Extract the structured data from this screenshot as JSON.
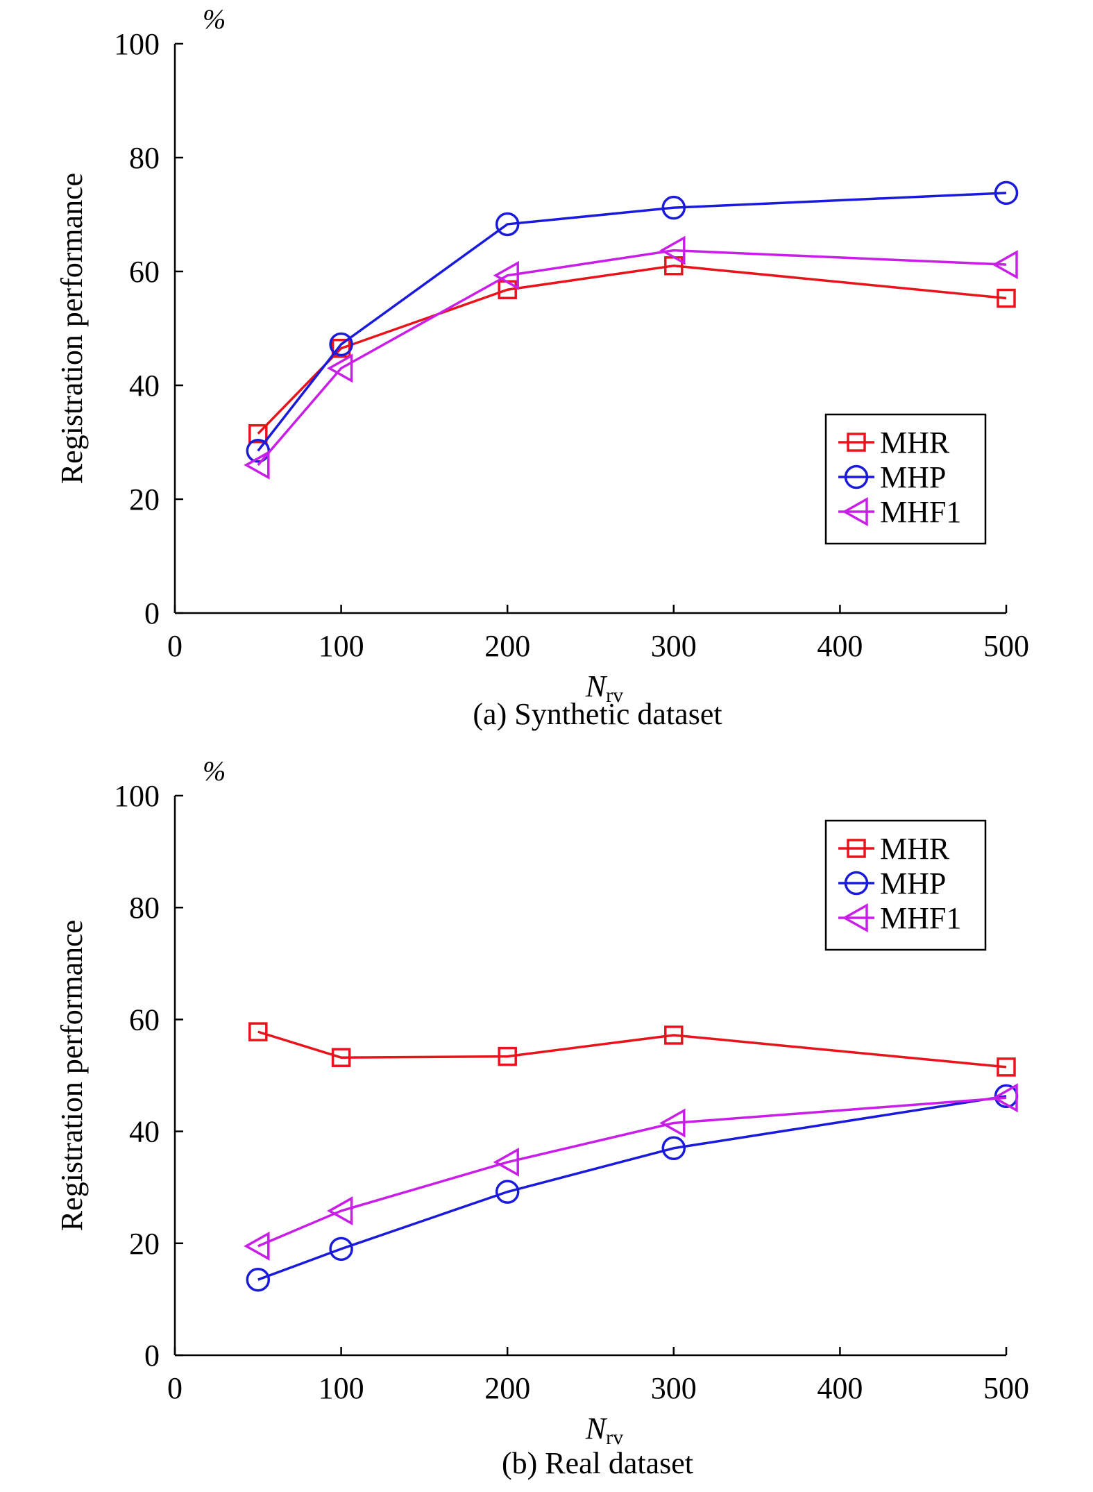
{
  "colors": {
    "MHR": "#e8141b",
    "MHP": "#1a1adb",
    "MHF1": "#c81ee8",
    "axis": "#000000"
  },
  "chart_data": [
    {
      "type": "line",
      "caption": "(a) Synthetic dataset",
      "unit": "%",
      "xlabel": "N",
      "xlabel_sub": "rv",
      "ylabel": "Registration performance",
      "xlim": [
        0,
        500
      ],
      "ylim": [
        0,
        100
      ],
      "x_ticks": [
        "0",
        "100",
        "200",
        "300",
        "400",
        "500"
      ],
      "y_ticks": [
        "0",
        "20",
        "40",
        "60",
        "80",
        "100"
      ],
      "grid": false,
      "legend_position": "lower-right",
      "series": [
        {
          "name": "MHR",
          "marker": "square",
          "x": [
            50,
            100,
            200,
            300,
            500
          ],
          "y": [
            31.5,
            46.5,
            56.8,
            61.0,
            55.3
          ]
        },
        {
          "name": "MHP",
          "marker": "circle",
          "x": [
            50,
            100,
            200,
            300,
            500
          ],
          "y": [
            28.5,
            47.2,
            68.3,
            71.2,
            73.8
          ]
        },
        {
          "name": "MHF1",
          "marker": "triangle-left",
          "x": [
            50,
            100,
            200,
            300,
            500
          ],
          "y": [
            26.0,
            43.0,
            59.3,
            63.7,
            61.2
          ]
        }
      ]
    },
    {
      "type": "line",
      "caption": "(b) Real dataset",
      "unit": "%",
      "xlabel": "N",
      "xlabel_sub": "rv",
      "ylabel": "Registration performance",
      "xlim": [
        0,
        500
      ],
      "ylim": [
        0,
        100
      ],
      "x_ticks": [
        "0",
        "100",
        "200",
        "300",
        "400",
        "500"
      ],
      "y_ticks": [
        "0",
        "20",
        "40",
        "60",
        "80",
        "100"
      ],
      "grid": false,
      "legend_position": "upper-right",
      "series": [
        {
          "name": "MHR",
          "marker": "square",
          "x": [
            50,
            100,
            200,
            300,
            500
          ],
          "y": [
            57.8,
            53.2,
            53.4,
            57.2,
            51.5
          ]
        },
        {
          "name": "MHP",
          "marker": "circle",
          "x": [
            50,
            100,
            200,
            300,
            500
          ],
          "y": [
            13.5,
            19.0,
            29.2,
            37.0,
            46.3
          ]
        },
        {
          "name": "MHF1",
          "marker": "triangle-left",
          "x": [
            50,
            100,
            200,
            300,
            500
          ],
          "y": [
            19.5,
            25.8,
            34.5,
            41.5,
            46.0
          ]
        }
      ]
    }
  ]
}
